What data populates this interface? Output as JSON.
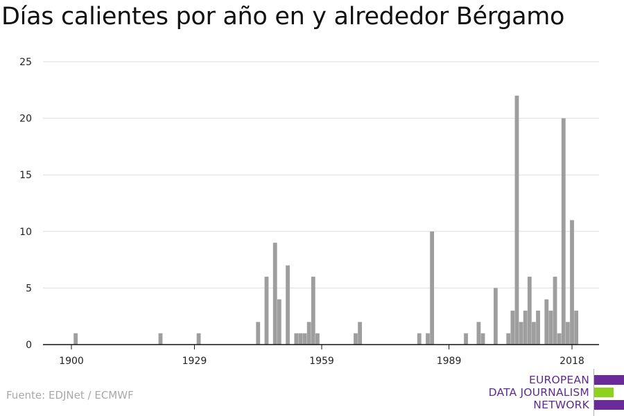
{
  "title": "Días calientes por año en y alrededor Bérgamo",
  "source": "Fuente: EDJNet / ECMWF",
  "logo": {
    "lines": [
      "EUROPEAN",
      "DATA JOURNALISM",
      "NETWORK"
    ],
    "colors": {
      "purple": "#6b2a9a",
      "green": "#8fd21e"
    }
  },
  "colors": {
    "bar": "#9e9e9e",
    "grid": "#dddddd",
    "axis": "#111111"
  },
  "chart_data": {
    "type": "bar",
    "title": "Días calientes por año en y alrededor Bérgamo",
    "xlabel": "",
    "ylabel": "",
    "xlim": [
      1900,
      2018
    ],
    "ylim": [
      0,
      25
    ],
    "x_ticks": [
      1900,
      1929,
      1959,
      1989,
      2018
    ],
    "y_ticks": [
      0,
      5,
      10,
      15,
      20,
      25
    ],
    "grid": true,
    "x": [
      1901,
      1921,
      1930,
      1944,
      1946,
      1948,
      1949,
      1951,
      1953,
      1954,
      1955,
      1956,
      1957,
      1958,
      1967,
      1968,
      1982,
      1984,
      1985,
      1993,
      1996,
      1997,
      2000,
      2003,
      2004,
      2005,
      2006,
      2007,
      2008,
      2009,
      2010,
      2012,
      2013,
      2014,
      2015,
      2016,
      2017,
      2018,
      2019,
      2020,
      2021
    ],
    "values": [
      1,
      1,
      1,
      2,
      6,
      9,
      4,
      7,
      1,
      1,
      1,
      2,
      6,
      1,
      1,
      2,
      1,
      1,
      10,
      1,
      2,
      1,
      5,
      1,
      3,
      22,
      2,
      3,
      6,
      2,
      3,
      4,
      3,
      6,
      1,
      20,
      2,
      11,
      3,
      0,
      0
    ]
  }
}
